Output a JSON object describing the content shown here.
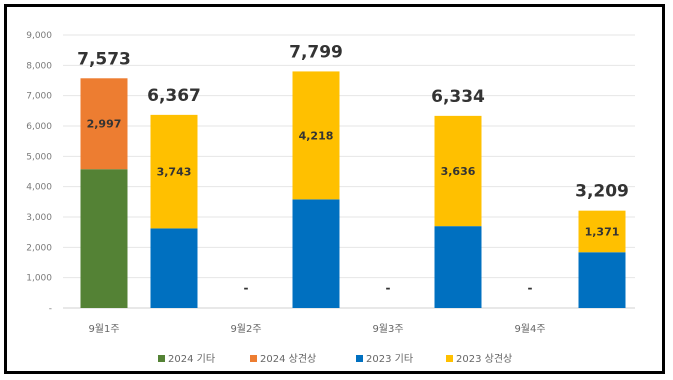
{
  "chart_data": {
    "type": "bar",
    "stacked": true,
    "categories": [
      "9월1주",
      "9월2주",
      "9월3주",
      "9월4주"
    ],
    "groups": [
      {
        "category": "9월1주",
        "bar": "2024",
        "segments": [
          4576,
          2997
        ],
        "total": "7,573",
        "label": "2,997"
      },
      {
        "category": "9월1주",
        "bar": "2023",
        "segments": [
          2624,
          3743
        ],
        "total": "6,367",
        "label": "3,743"
      },
      {
        "category": "9월2주",
        "bar": "2024",
        "segments": [
          0,
          0
        ],
        "total": "-",
        "label": ""
      },
      {
        "category": "9월2주",
        "bar": "2023",
        "segments": [
          3581,
          4218
        ],
        "total": "7,799",
        "label": "4,218"
      },
      {
        "category": "9월3주",
        "bar": "2024",
        "segments": [
          0,
          0
        ],
        "total": "-",
        "label": ""
      },
      {
        "category": "9월3주",
        "bar": "2023",
        "segments": [
          2698,
          3636
        ],
        "total": "6,334",
        "label": "3,636"
      },
      {
        "category": "9월4주",
        "bar": "2024",
        "segments": [
          0,
          0
        ],
        "total": "-",
        "label": ""
      },
      {
        "category": "9월4주",
        "bar": "2023",
        "segments": [
          1838,
          1371
        ],
        "total": "3,209",
        "label": "1,371"
      }
    ],
    "series": [
      {
        "name": "2024 기타",
        "color": "#548235"
      },
      {
        "name": "2024 상견상",
        "color": "#ED7D31"
      },
      {
        "name": "2023 기타",
        "color": "#0070C0"
      },
      {
        "name": "2023 상견상",
        "color": "#FFC000"
      }
    ],
    "yticks": [
      "-",
      "1,000",
      "2,000",
      "3,000",
      "4,000",
      "5,000",
      "6,000",
      "7,000",
      "8,000",
      "9,000"
    ],
    "ylim": [
      0,
      9000
    ],
    "grid": true,
    "legend_position": "bottom"
  }
}
